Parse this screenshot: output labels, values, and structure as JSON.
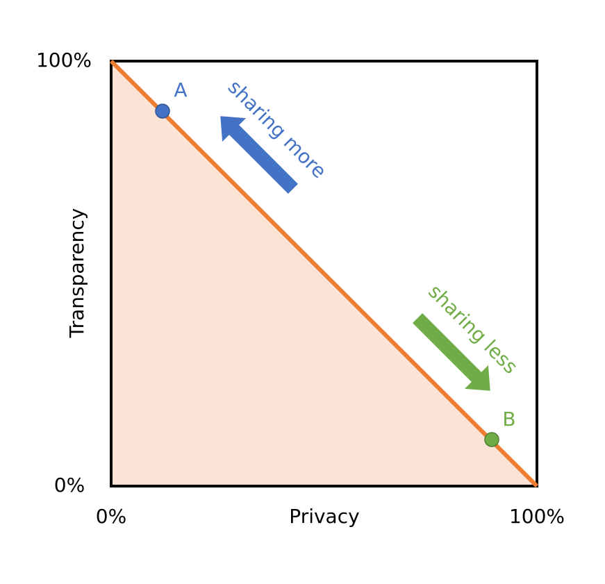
{
  "axes": {
    "y_label": "Transparency",
    "y_top": "100%",
    "y_bottom": "0%",
    "x_label": "Privacy",
    "x_left": "0%",
    "x_right": "100%"
  },
  "points": [
    {
      "label": "A"
    },
    {
      "label": "B"
    }
  ],
  "arrows": [
    {
      "label": "sharing more"
    },
    {
      "label": "sharing less"
    }
  ]
}
